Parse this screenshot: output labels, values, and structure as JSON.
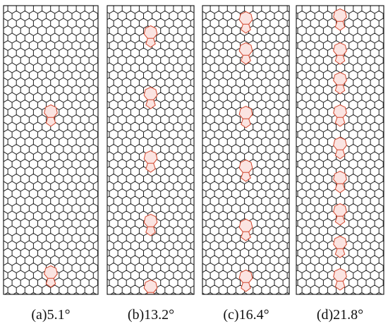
{
  "panels": [
    {
      "label": "(a)5.1°"
    },
    {
      "label": "(b)13.2°"
    },
    {
      "label": "(c)16.4°"
    },
    {
      "label": "(d)21.8°"
    }
  ]
}
